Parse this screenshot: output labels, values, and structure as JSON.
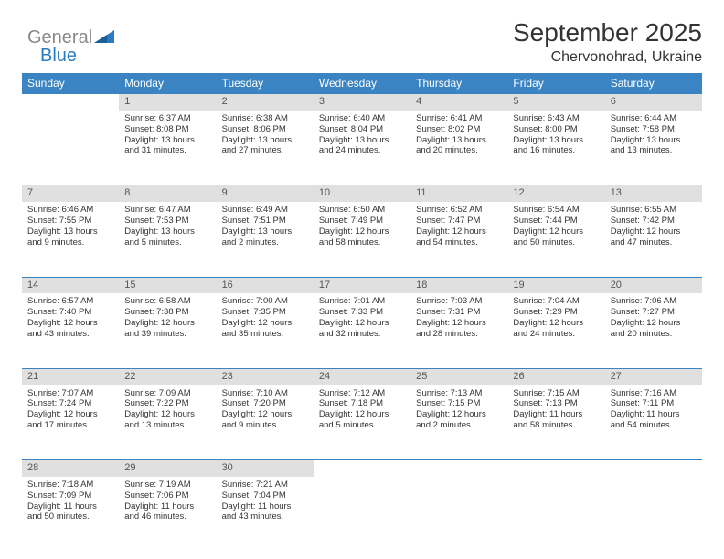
{
  "logo": {
    "text1": "General",
    "text2": "Blue"
  },
  "title": "September 2025",
  "location": "Chervonohrad, Ukraine",
  "colors": {
    "header_bg": "#3b84c4",
    "header_text": "#ffffff",
    "daynum_bg": "#e0e0e0",
    "daynum_text": "#555555",
    "body_text": "#333333",
    "border": "#3b84c4",
    "logo_gray": "#888888",
    "logo_blue": "#2a7bbf"
  },
  "day_headers": [
    "Sunday",
    "Monday",
    "Tuesday",
    "Wednesday",
    "Thursday",
    "Friday",
    "Saturday"
  ],
  "weeks": [
    {
      "nums": [
        "",
        "1",
        "2",
        "3",
        "4",
        "5",
        "6"
      ],
      "cells": [
        [],
        [
          "Sunrise: 6:37 AM",
          "Sunset: 8:08 PM",
          "Daylight: 13 hours",
          "and 31 minutes."
        ],
        [
          "Sunrise: 6:38 AM",
          "Sunset: 8:06 PM",
          "Daylight: 13 hours",
          "and 27 minutes."
        ],
        [
          "Sunrise: 6:40 AM",
          "Sunset: 8:04 PM",
          "Daylight: 13 hours",
          "and 24 minutes."
        ],
        [
          "Sunrise: 6:41 AM",
          "Sunset: 8:02 PM",
          "Daylight: 13 hours",
          "and 20 minutes."
        ],
        [
          "Sunrise: 6:43 AM",
          "Sunset: 8:00 PM",
          "Daylight: 13 hours",
          "and 16 minutes."
        ],
        [
          "Sunrise: 6:44 AM",
          "Sunset: 7:58 PM",
          "Daylight: 13 hours",
          "and 13 minutes."
        ]
      ]
    },
    {
      "nums": [
        "7",
        "8",
        "9",
        "10",
        "11",
        "12",
        "13"
      ],
      "cells": [
        [
          "Sunrise: 6:46 AM",
          "Sunset: 7:55 PM",
          "Daylight: 13 hours",
          "and 9 minutes."
        ],
        [
          "Sunrise: 6:47 AM",
          "Sunset: 7:53 PM",
          "Daylight: 13 hours",
          "and 5 minutes."
        ],
        [
          "Sunrise: 6:49 AM",
          "Sunset: 7:51 PM",
          "Daylight: 13 hours",
          "and 2 minutes."
        ],
        [
          "Sunrise: 6:50 AM",
          "Sunset: 7:49 PM",
          "Daylight: 12 hours",
          "and 58 minutes."
        ],
        [
          "Sunrise: 6:52 AM",
          "Sunset: 7:47 PM",
          "Daylight: 12 hours",
          "and 54 minutes."
        ],
        [
          "Sunrise: 6:54 AM",
          "Sunset: 7:44 PM",
          "Daylight: 12 hours",
          "and 50 minutes."
        ],
        [
          "Sunrise: 6:55 AM",
          "Sunset: 7:42 PM",
          "Daylight: 12 hours",
          "and 47 minutes."
        ]
      ]
    },
    {
      "nums": [
        "14",
        "15",
        "16",
        "17",
        "18",
        "19",
        "20"
      ],
      "cells": [
        [
          "Sunrise: 6:57 AM",
          "Sunset: 7:40 PM",
          "Daylight: 12 hours",
          "and 43 minutes."
        ],
        [
          "Sunrise: 6:58 AM",
          "Sunset: 7:38 PM",
          "Daylight: 12 hours",
          "and 39 minutes."
        ],
        [
          "Sunrise: 7:00 AM",
          "Sunset: 7:35 PM",
          "Daylight: 12 hours",
          "and 35 minutes."
        ],
        [
          "Sunrise: 7:01 AM",
          "Sunset: 7:33 PM",
          "Daylight: 12 hours",
          "and 32 minutes."
        ],
        [
          "Sunrise: 7:03 AM",
          "Sunset: 7:31 PM",
          "Daylight: 12 hours",
          "and 28 minutes."
        ],
        [
          "Sunrise: 7:04 AM",
          "Sunset: 7:29 PM",
          "Daylight: 12 hours",
          "and 24 minutes."
        ],
        [
          "Sunrise: 7:06 AM",
          "Sunset: 7:27 PM",
          "Daylight: 12 hours",
          "and 20 minutes."
        ]
      ]
    },
    {
      "nums": [
        "21",
        "22",
        "23",
        "24",
        "25",
        "26",
        "27"
      ],
      "cells": [
        [
          "Sunrise: 7:07 AM",
          "Sunset: 7:24 PM",
          "Daylight: 12 hours",
          "and 17 minutes."
        ],
        [
          "Sunrise: 7:09 AM",
          "Sunset: 7:22 PM",
          "Daylight: 12 hours",
          "and 13 minutes."
        ],
        [
          "Sunrise: 7:10 AM",
          "Sunset: 7:20 PM",
          "Daylight: 12 hours",
          "and 9 minutes."
        ],
        [
          "Sunrise: 7:12 AM",
          "Sunset: 7:18 PM",
          "Daylight: 12 hours",
          "and 5 minutes."
        ],
        [
          "Sunrise: 7:13 AM",
          "Sunset: 7:15 PM",
          "Daylight: 12 hours",
          "and 2 minutes."
        ],
        [
          "Sunrise: 7:15 AM",
          "Sunset: 7:13 PM",
          "Daylight: 11 hours",
          "and 58 minutes."
        ],
        [
          "Sunrise: 7:16 AM",
          "Sunset: 7:11 PM",
          "Daylight: 11 hours",
          "and 54 minutes."
        ]
      ]
    },
    {
      "nums": [
        "28",
        "29",
        "30",
        "",
        "",
        "",
        ""
      ],
      "cells": [
        [
          "Sunrise: 7:18 AM",
          "Sunset: 7:09 PM",
          "Daylight: 11 hours",
          "and 50 minutes."
        ],
        [
          "Sunrise: 7:19 AM",
          "Sunset: 7:06 PM",
          "Daylight: 11 hours",
          "and 46 minutes."
        ],
        [
          "Sunrise: 7:21 AM",
          "Sunset: 7:04 PM",
          "Daylight: 11 hours",
          "and 43 minutes."
        ],
        [],
        [],
        [],
        []
      ]
    }
  ]
}
